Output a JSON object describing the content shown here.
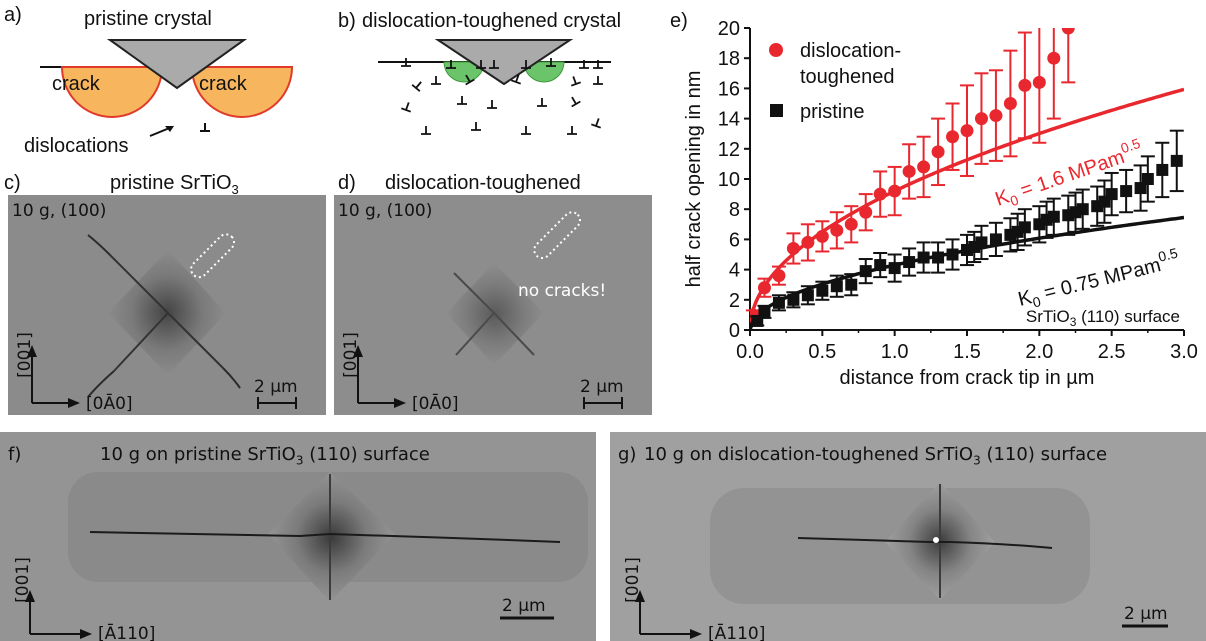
{
  "panels": {
    "a": {
      "letter": "a)",
      "title": "pristine crystal",
      "crack_left": "crack",
      "crack_right": "crack",
      "dislocations": "dislocations"
    },
    "b": {
      "letter": "b)",
      "title": "dislocation-toughened crystal"
    },
    "c": {
      "letter": "c)",
      "title_pre": "pristine SrTiO",
      "title_sub": "3",
      "load": "10 g, (100)",
      "axis_v": "[001]",
      "axis_h": "[0Ā0]",
      "scale": "2 µm"
    },
    "d": {
      "letter": "d)",
      "title": "dislocation-toughened",
      "load": "10 g, (100)",
      "note": "no cracks!",
      "axis_v": "[001]",
      "axis_h": "[0Ā0]",
      "scale": "2 µm"
    },
    "e": {
      "letter": "e)"
    },
    "f": {
      "letter": "f)",
      "title_pre": "10 g on pristine SrTiO",
      "title_sub": "3",
      "title_post": " (110) surface",
      "axis_v": "[001]",
      "axis_h": "[Ā110]",
      "scale": "2 µm"
    },
    "g": {
      "letter": "g)",
      "title_pre": "10 g on dislocation-toughened SrTiO",
      "title_sub": "3",
      "title_post": " (110) surface",
      "axis_v": "[001]",
      "axis_h": "[Ā110]",
      "scale": "2 µm"
    }
  },
  "colors": {
    "red": "#e8282e",
    "black": "#111111",
    "crack_fill": "#f7b65d",
    "crack_edge": "#e03a2a",
    "green": "#6cc46a",
    "indenter": "#aaaaaa"
  },
  "chart_data": {
    "type": "scatter",
    "xlabel": "distance from crack tip in µm",
    "ylabel": "half crack opening in nm",
    "xlim": [
      0,
      3.0
    ],
    "ylim": [
      0,
      20
    ],
    "xticks": [
      "0.0",
      "0.5",
      "1.0",
      "1.5",
      "2.0",
      "2.5",
      "3.0"
    ],
    "yticks": [
      "0",
      "2",
      "4",
      "6",
      "8",
      "10",
      "12",
      "14",
      "16",
      "18",
      "20"
    ],
    "legend": [
      {
        "name": "dislocation-",
        "name2": "toughened",
        "marker": "circle",
        "color": "#e8282e"
      },
      {
        "name": "pristine",
        "marker": "square",
        "color": "#111111"
      }
    ],
    "annotations": {
      "k_red_pre": "K",
      "k_red_sub": "0",
      "k_red_mid": " = 1.6 MPam",
      "k_red_sup": "0.5",
      "k_black_pre": "K",
      "k_black_sub": "0",
      "k_black_mid": " = 0.75 MPam",
      "k_black_sup": "0.5",
      "surface_pre": "SrTiO",
      "surface_sub": "3",
      "surface_post": " (110) surface"
    },
    "series": [
      {
        "name": "dislocation-toughened",
        "marker": "circle",
        "color": "#e8282e",
        "x": [
          0.02,
          0.1,
          0.2,
          0.3,
          0.4,
          0.5,
          0.6,
          0.7,
          0.8,
          0.9,
          1.0,
          1.1,
          1.2,
          1.3,
          1.4,
          1.5,
          1.6,
          1.7,
          1.8,
          1.9,
          2.0,
          2.1,
          2.2
        ],
        "y": [
          1.0,
          2.8,
          3.6,
          5.4,
          5.8,
          6.2,
          6.6,
          7.0,
          7.8,
          9.0,
          9.2,
          10.5,
          10.8,
          11.8,
          12.8,
          13.2,
          14.0,
          14.2,
          15.0,
          16.2,
          16.4,
          18.0,
          20.0
        ],
        "err": [
          0.3,
          0.6,
          0.6,
          1.0,
          1.2,
          1.0,
          1.2,
          1.2,
          1.2,
          1.5,
          1.6,
          1.8,
          2.0,
          2.2,
          2.2,
          3.0,
          3.0,
          3.0,
          3.5,
          3.5,
          4.0,
          4.0,
          3.6
        ]
      },
      {
        "name": "pristine",
        "marker": "square",
        "color": "#111111",
        "x": [
          0.05,
          0.1,
          0.2,
          0.3,
          0.4,
          0.5,
          0.6,
          0.7,
          0.8,
          0.9,
          1.0,
          1.1,
          1.2,
          1.3,
          1.4,
          1.5,
          1.55,
          1.6,
          1.7,
          1.8,
          1.85,
          1.9,
          2.0,
          2.05,
          2.1,
          2.2,
          2.25,
          2.3,
          2.4,
          2.45,
          2.5,
          2.6,
          2.7,
          2.75,
          2.85,
          2.95
        ],
        "y": [
          0.6,
          1.2,
          1.8,
          2.0,
          2.3,
          2.6,
          2.9,
          3.0,
          3.9,
          4.3,
          4.1,
          4.5,
          4.8,
          4.8,
          5.0,
          5.3,
          5.5,
          5.8,
          6.0,
          6.3,
          6.5,
          6.8,
          7.0,
          7.3,
          7.5,
          7.6,
          7.8,
          8.0,
          8.2,
          8.5,
          9.0,
          9.2,
          9.4,
          10.0,
          10.6,
          11.2
        ],
        "err": [
          0.3,
          0.4,
          0.5,
          0.5,
          0.6,
          0.6,
          0.7,
          0.7,
          0.8,
          0.8,
          0.9,
          0.9,
          1.0,
          1.0,
          1.0,
          1.0,
          1.0,
          1.1,
          1.1,
          1.1,
          1.2,
          1.2,
          1.2,
          1.2,
          1.2,
          1.3,
          1.3,
          1.3,
          1.3,
          1.4,
          1.4,
          1.4,
          1.5,
          1.5,
          1.8,
          2.0
        ]
      }
    ],
    "fits": [
      {
        "name": "K0 = 1.6 MPam0.5",
        "color": "#e8282e",
        "a": 9.2
      },
      {
        "name": "K0 = 0.75 MPam0.5",
        "color": "#111111",
        "a": 4.3
      }
    ]
  }
}
